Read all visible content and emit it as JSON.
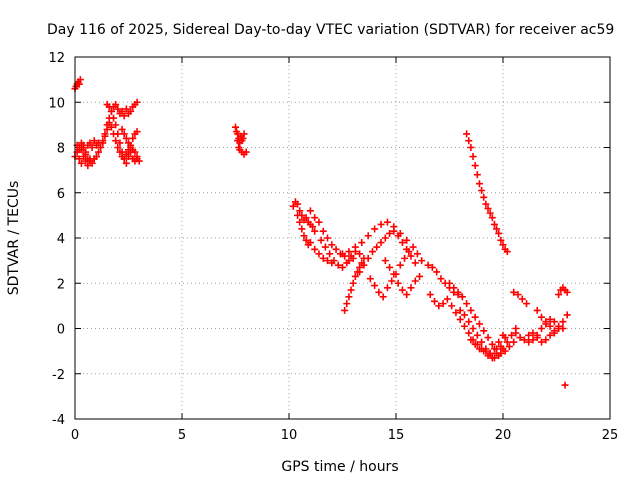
{
  "chart_data": {
    "type": "scatter",
    "title": "Day 116 of 2025, Sidereal Day-to-day VTEC variation (SDTVAR) for receiver ac59",
    "xlabel": "GPS time / hours",
    "ylabel": "SDTVAR / TECUs",
    "xlim": [
      0,
      25
    ],
    "ylim": [
      -4,
      12
    ],
    "xticks": [
      0,
      5,
      10,
      15,
      20,
      25
    ],
    "yticks": [
      -4,
      -2,
      0,
      2,
      4,
      6,
      8,
      10,
      12
    ],
    "grid": true,
    "marker": "+",
    "color": "#ff0000",
    "series": [
      {
        "name": "SDTVAR",
        "x": [
          0.0,
          0.05,
          0.1,
          0.15,
          0.2,
          0.25,
          0.0,
          0.1,
          0.2,
          0.3,
          0.4,
          0.5,
          0.6,
          0.7,
          0.8,
          0.9,
          1.0,
          1.1,
          1.2,
          1.3,
          0.1,
          0.2,
          0.3,
          0.4,
          0.5,
          0.6,
          0.7,
          0.8,
          0.9,
          1.0,
          1.1,
          0.2,
          0.3,
          0.4,
          0.5,
          0.6,
          0.7,
          1.3,
          1.4,
          1.5,
          1.6,
          1.7,
          1.8,
          1.9,
          2.0,
          2.1,
          2.2,
          2.3,
          2.4,
          2.5,
          2.6,
          2.7,
          2.8,
          2.9,
          1.4,
          1.5,
          1.6,
          1.7,
          1.8,
          1.9,
          2.0,
          2.1,
          2.2,
          2.3,
          2.4,
          2.5,
          2.6,
          2.7,
          2.8,
          2.9,
          1.5,
          1.6,
          1.7,
          1.8,
          1.9,
          2.0,
          2.1,
          2.2,
          2.3,
          2.4,
          2.5,
          2.6,
          2.7,
          2.8,
          2.9,
          3.0,
          2.2,
          2.3,
          2.4,
          2.5,
          2.6,
          2.7,
          2.8,
          2.9,
          7.5,
          7.55,
          7.6,
          7.65,
          7.7,
          7.75,
          7.8,
          7.85,
          7.9,
          7.6,
          7.65,
          7.7,
          7.8,
          7.9,
          8.0,
          10.2,
          10.3,
          10.4,
          10.5,
          10.6,
          10.7,
          10.8,
          10.9,
          11.0,
          11.1,
          11.2,
          10.4,
          10.5,
          10.6,
          10.7,
          10.8,
          10.9,
          11.0,
          11.2,
          11.4,
          11.6,
          11.8,
          12.0,
          11.0,
          11.2,
          11.4,
          11.6,
          11.8,
          12.0,
          12.2,
          12.4,
          12.6,
          12.8,
          13.0,
          11.5,
          11.7,
          11.9,
          12.1,
          12.3,
          12.5,
          12.7,
          12.9,
          13.1,
          13.3,
          12.6,
          12.7,
          12.8,
          12.9,
          13.0,
          13.1,
          13.2,
          13.3,
          13.4,
          13.5,
          12.5,
          12.8,
          13.1,
          13.4,
          13.7,
          14.0,
          14.3,
          14.6,
          14.9,
          15.2,
          15.5,
          13.3,
          13.5,
          13.7,
          13.9,
          14.1,
          14.3,
          14.5,
          14.7,
          14.9,
          15.1,
          15.3,
          15.5,
          15.7,
          15.9,
          13.8,
          14.0,
          14.2,
          14.4,
          14.6,
          14.8,
          15.0,
          15.2,
          15.4,
          15.6,
          15.8,
          16.0,
          16.2,
          14.5,
          14.7,
          14.9,
          15.1,
          15.3,
          15.5,
          15.7,
          15.9,
          16.1,
          16.5,
          16.7,
          16.9,
          17.1,
          17.3,
          17.5,
          17.7,
          17.9,
          16.6,
          16.8,
          17.0,
          17.2,
          17.4,
          17.6,
          17.8,
          18.0,
          18.2,
          18.4,
          18.6,
          18.8,
          19.0,
          19.2,
          19.4,
          19.6,
          19.8,
          20.0,
          17.5,
          17.7,
          17.9,
          18.1,
          18.3,
          18.5,
          18.7,
          18.9,
          19.1,
          19.3,
          19.5,
          19.7,
          19.9,
          20.1,
          20.3,
          20.5,
          18.0,
          18.2,
          18.4,
          18.6,
          18.8,
          19.0,
          19.2,
          19.4,
          19.6,
          19.8,
          20.0,
          20.2,
          20.4,
          20.6,
          18.5,
          18.7,
          18.9,
          19.1,
          19.3,
          19.5,
          19.7,
          19.9,
          20.1,
          18.3,
          18.4,
          18.5,
          18.6,
          18.7,
          18.8,
          18.9,
          19.0,
          19.1,
          19.2,
          19.3,
          19.4,
          19.5,
          19.6,
          19.7,
          19.8,
          19.9,
          20.0,
          20.1,
          20.2,
          20.5,
          20.7,
          20.9,
          21.1,
          20.6,
          20.8,
          21.0,
          21.2,
          21.4,
          21.6,
          21.8,
          22.0,
          22.2,
          22.4,
          22.6,
          21.2,
          21.4,
          21.6,
          21.8,
          22.0,
          22.2,
          22.4,
          22.6,
          22.8,
          21.6,
          21.8,
          22.0,
          22.2,
          22.4,
          22.6,
          22.8,
          23.0,
          22.6,
          22.7,
          22.8,
          22.9,
          23.0,
          22.9
        ],
        "y": [
          10.6,
          10.7,
          10.8,
          10.9,
          10.8,
          11.0,
          7.6,
          7.8,
          8.0,
          7.9,
          8.1,
          7.7,
          7.5,
          7.4,
          7.3,
          7.5,
          7.6,
          7.8,
          8.0,
          8.2,
          8.1,
          7.9,
          8.2,
          8.0,
          7.8,
          8.1,
          8.2,
          8.0,
          8.3,
          8.1,
          8.2,
          7.5,
          7.3,
          7.6,
          7.4,
          7.2,
          7.5,
          8.3,
          8.6,
          9.0,
          9.3,
          9.6,
          9.8,
          9.9,
          9.7,
          9.5,
          9.6,
          9.4,
          9.7,
          9.5,
          9.6,
          9.8,
          9.9,
          10.0,
          8.5,
          8.8,
          9.1,
          8.9,
          8.6,
          8.3,
          8.0,
          7.8,
          7.6,
          7.5,
          7.7,
          7.9,
          8.1,
          8.4,
          8.6,
          8.7,
          9.9,
          9.8,
          9.6,
          9.3,
          9.0,
          8.6,
          8.2,
          7.8,
          7.5,
          7.3,
          7.6,
          7.8,
          7.5,
          7.4,
          7.5,
          7.4,
          8.8,
          8.6,
          8.4,
          8.2,
          8.0,
          7.9,
          7.8,
          7.6,
          8.9,
          8.7,
          8.6,
          8.4,
          8.2,
          8.5,
          8.3,
          8.4,
          8.6,
          8.3,
          8.0,
          7.9,
          7.8,
          7.7,
          7.8,
          5.4,
          5.6,
          5.5,
          5.2,
          5.0,
          4.8,
          4.9,
          4.7,
          4.6,
          4.5,
          4.3,
          5.0,
          4.7,
          4.4,
          4.1,
          3.9,
          3.7,
          3.8,
          3.5,
          3.3,
          3.1,
          3.0,
          2.9,
          5.2,
          4.9,
          4.7,
          4.3,
          4.0,
          3.7,
          3.5,
          3.3,
          3.2,
          3.0,
          3.1,
          3.9,
          3.6,
          3.3,
          3.0,
          2.8,
          2.7,
          2.9,
          3.2,
          3.4,
          3.3,
          0.8,
          1.1,
          1.4,
          1.7,
          2.0,
          2.3,
          2.5,
          2.7,
          2.9,
          3.1,
          3.3,
          3.4,
          3.6,
          3.8,
          4.1,
          4.4,
          4.6,
          4.7,
          4.5,
          4.2,
          3.9,
          2.5,
          2.8,
          3.1,
          3.4,
          3.6,
          3.8,
          4.0,
          4.2,
          4.3,
          4.1,
          3.8,
          3.5,
          3.2,
          2.9,
          2.2,
          1.9,
          1.6,
          1.4,
          1.8,
          2.1,
          2.4,
          2.8,
          3.1,
          3.4,
          3.6,
          3.3,
          3.0,
          3.0,
          2.7,
          2.4,
          2.0,
          1.7,
          1.5,
          1.8,
          2.1,
          2.3,
          2.8,
          2.7,
          2.5,
          2.2,
          2.0,
          1.8,
          1.6,
          1.5,
          1.5,
          1.2,
          1.0,
          1.1,
          1.3,
          1.0,
          0.7,
          0.4,
          0.1,
          -0.2,
          -0.5,
          -0.7,
          -0.9,
          -1.0,
          -1.1,
          -0.9,
          -0.6,
          -0.3,
          2.0,
          1.8,
          1.6,
          1.4,
          1.1,
          0.8,
          0.5,
          0.2,
          -0.1,
          -0.4,
          -0.7,
          -0.9,
          -1.1,
          -1.0,
          -0.8,
          -0.6,
          0.8,
          0.6,
          0.3,
          0.0,
          -0.3,
          -0.6,
          -0.9,
          -1.1,
          -1.3,
          -1.2,
          -0.9,
          -0.6,
          -0.3,
          0.0,
          -0.5,
          -0.7,
          -0.9,
          -1.0,
          -1.2,
          -1.3,
          -1.1,
          -0.8,
          -0.4,
          8.6,
          8.3,
          8.0,
          7.6,
          7.2,
          6.8,
          6.4,
          6.1,
          5.8,
          5.5,
          5.3,
          5.1,
          4.9,
          4.6,
          4.4,
          4.2,
          3.9,
          3.7,
          3.5,
          3.4,
          1.6,
          1.5,
          1.3,
          1.1,
          -0.2,
          -0.4,
          -0.5,
          -0.3,
          -0.2,
          -0.4,
          -0.6,
          -0.5,
          -0.3,
          -0.2,
          0.0,
          -0.6,
          -0.5,
          -0.3,
          0.0,
          0.2,
          0.4,
          0.3,
          0.1,
          0.0,
          0.8,
          0.5,
          0.3,
          0.1,
          -0.1,
          0.0,
          0.3,
          0.6,
          1.5,
          1.7,
          1.8,
          1.7,
          1.6,
          -2.5
        ]
      }
    ]
  }
}
